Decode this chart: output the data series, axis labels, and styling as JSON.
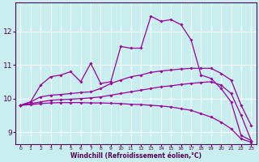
{
  "title": "",
  "xlabel": "Windchill (Refroidissement éolien,°C)",
  "ylabel": "",
  "bg_color": "#c8eef0",
  "line_color": "#990099",
  "grid_color": "#ffffff",
  "xlim": [
    -0.5,
    23.5
  ],
  "ylim": [
    8.65,
    12.85
  ],
  "yticks": [
    9,
    10,
    11,
    12
  ],
  "xticks": [
    0,
    1,
    2,
    3,
    4,
    5,
    6,
    7,
    8,
    9,
    10,
    11,
    12,
    13,
    14,
    15,
    16,
    17,
    18,
    19,
    20,
    21,
    22,
    23
  ],
  "series": {
    "line1_zigzag": {
      "x": [
        0,
        1,
        2,
        3,
        4,
        5,
        6,
        7,
        8,
        9,
        10,
        11,
        12,
        13,
        14,
        15,
        16,
        17,
        18,
        19,
        20,
        21,
        22,
        23
      ],
      "y": [
        9.8,
        9.9,
        10.4,
        10.65,
        10.7,
        10.8,
        10.5,
        11.05,
        10.45,
        10.5,
        11.55,
        11.5,
        11.5,
        12.45,
        12.3,
        12.35,
        12.2,
        11.75,
        10.7,
        10.6,
        10.3,
        9.9,
        8.9,
        8.75
      ]
    },
    "line2_smooth": {
      "x": [
        0,
        1,
        2,
        3,
        4,
        5,
        6,
        7,
        8,
        9,
        10,
        11,
        12,
        13,
        14,
        15,
        16,
        17,
        18,
        19,
        20,
        21,
        22,
        23
      ],
      "y": [
        9.8,
        9.9,
        10.05,
        10.1,
        10.12,
        10.15,
        10.18,
        10.2,
        10.3,
        10.45,
        10.55,
        10.65,
        10.7,
        10.78,
        10.82,
        10.85,
        10.88,
        10.9,
        10.9,
        10.9,
        10.75,
        10.55,
        9.8,
        9.2
      ]
    },
    "line3_gentle": {
      "x": [
        0,
        1,
        2,
        3,
        4,
        5,
        6,
        7,
        8,
        9,
        10,
        11,
        12,
        13,
        14,
        15,
        16,
        17,
        18,
        19,
        20,
        21,
        22,
        23
      ],
      "y": [
        9.8,
        9.85,
        9.9,
        9.95,
        9.97,
        9.98,
        10.0,
        10.02,
        10.05,
        10.1,
        10.15,
        10.2,
        10.25,
        10.3,
        10.35,
        10.38,
        10.42,
        10.45,
        10.48,
        10.5,
        10.4,
        10.15,
        9.5,
        8.75
      ]
    },
    "line4_decline": {
      "x": [
        0,
        1,
        2,
        3,
        4,
        5,
        6,
        7,
        8,
        9,
        10,
        11,
        12,
        13,
        14,
        15,
        16,
        17,
        18,
        19,
        20,
        21,
        22,
        23
      ],
      "y": [
        9.8,
        9.82,
        9.85,
        9.87,
        9.88,
        9.88,
        9.88,
        9.87,
        9.87,
        9.86,
        9.85,
        9.83,
        9.82,
        9.8,
        9.78,
        9.75,
        9.7,
        9.65,
        9.55,
        9.45,
        9.3,
        9.1,
        8.8,
        8.7
      ]
    }
  }
}
